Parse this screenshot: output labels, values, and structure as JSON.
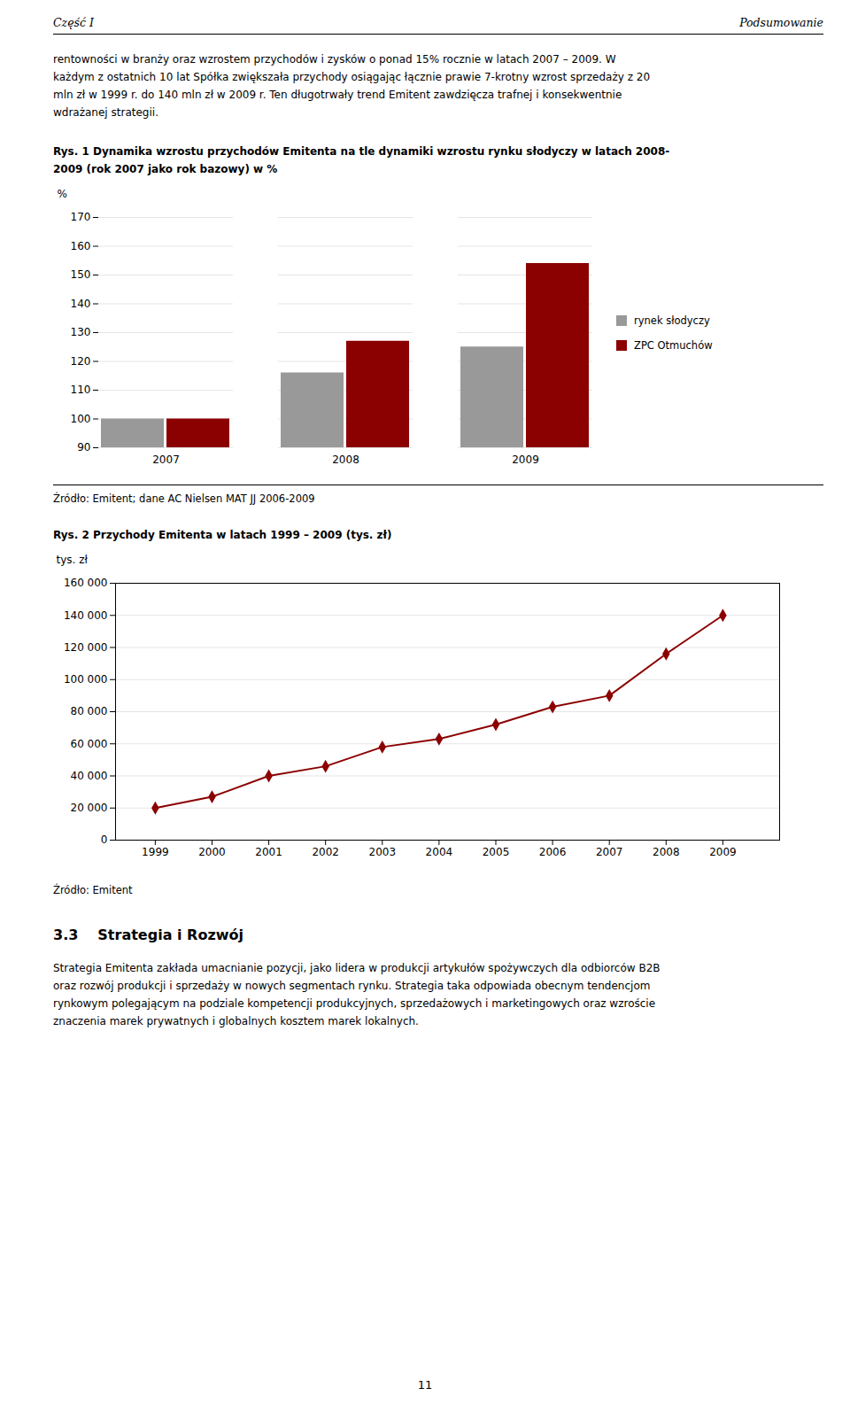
{
  "header": {
    "left": "Część I",
    "right": "Podsumowanie"
  },
  "text_before": [
    "rentowności w branży oraz wzrostem przychodów i zysków o ponad 15% rocznie w latach 2007 – 2009. W",
    "każdym z ostatnich 10 lat Spółka zwiększała przychody osiągając łącznie prawie 7-krotny wzrost sprzedaży z 20",
    "mln zł w 1999 r. do 140 mln zł w 2009 r. Ten długotrwały trend Emitent zawdzięcza trafnej i konsekwentnie",
    "wdrażanej strategii."
  ],
  "chart_data": [
    {
      "type": "bar",
      "title": "Rys. 1 Dynamika wzrostu przychodów Emitenta na tle dynamiki wzrostu rynku słodyczy w latach 2008-\n2009 (rok 2007 jako rok bazowy) w %",
      "ylabel": "%",
      "categories": [
        "2007",
        "2008",
        "2009"
      ],
      "series": [
        {
          "name": "rynek słodyczy",
          "color": "#999999",
          "values": [
            100,
            116,
            125
          ]
        },
        {
          "name": "ZPC Otmuchów",
          "color": "#8b0000",
          "values": [
            100,
            127,
            154
          ]
        }
      ],
      "ylim": [
        90,
        170
      ],
      "yticks": [
        90,
        100,
        110,
        120,
        130,
        140,
        150,
        160,
        170
      ],
      "grid": true,
      "legend": "right",
      "source": "Źródło: Emitent; dane AC Nielsen MAT JJ 2006-2009"
    },
    {
      "type": "line",
      "title": "Rys. 2 Przychody Emitenta w latach 1999 – 2009 (tys. zł)",
      "ylabel": "tys. zł",
      "x": [
        1999,
        2000,
        2001,
        2002,
        2003,
        2004,
        2005,
        2006,
        2007,
        2008,
        2009
      ],
      "values": [
        20000,
        27000,
        40000,
        46000,
        58000,
        63000,
        72000,
        83000,
        90000,
        116000,
        140000
      ],
      "color": "#8b0000",
      "marker": "diamond",
      "xlim": [
        1998.3,
        2010.0
      ],
      "xticks": [
        1999,
        2000,
        2001,
        2002,
        2003,
        2004,
        2005,
        2006,
        2007,
        2008,
        2009
      ],
      "ylim": [
        0,
        160000
      ],
      "yticks": [
        0,
        {
          "value": 20000,
          "label": "20 000"
        },
        {
          "value": 40000,
          "label": "40 000"
        },
        {
          "value": 60000,
          "label": "60 000"
        },
        {
          "value": 80000,
          "label": "80 000"
        },
        {
          "value": 100000,
          "label": "100 000"
        },
        {
          "value": 120000,
          "label": "120 000"
        },
        {
          "value": 140000,
          "label": "140 000"
        },
        {
          "value": 160000,
          "label": "160 000"
        }
      ],
      "grid": true,
      "source": "Źródło: Emitent"
    }
  ],
  "section": {
    "number": "3.3",
    "title": "Strategia i Rozwój"
  },
  "text_after": [
    "Strategia Emitenta zakłada umacnianie pozycji, jako lidera w produkcji artykułów spożywczych dla odbiorców B2B",
    "oraz rozwój produkcji i sprzedaży w nowych segmentach rynku. Strategia taka odpowiada obecnym tendencjom",
    "rynkowym polegającym na podziale kompetencji produkcyjnych, sprzedażowych i marketingowych oraz wzroście",
    "znaczenia marek prywatnych i globalnych kosztem marek lokalnych."
  ],
  "page_number": "11"
}
